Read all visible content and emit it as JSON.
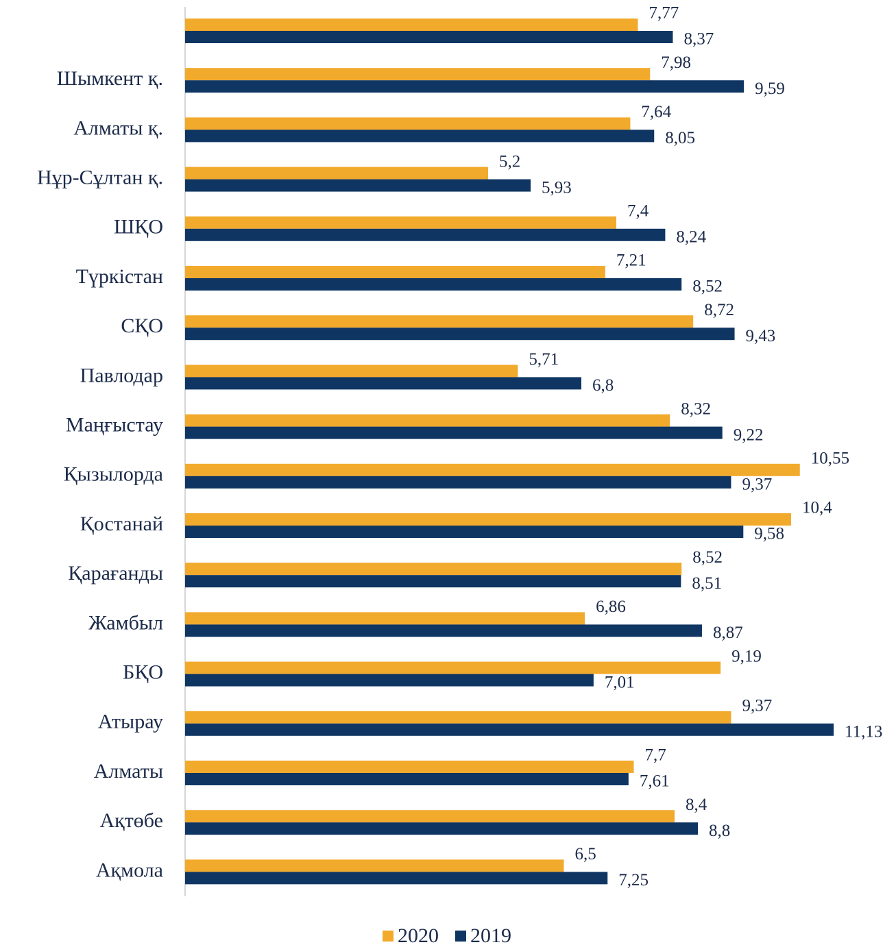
{
  "chart_data": {
    "type": "hbar",
    "categories": [
      null,
      "Шымкент қ.",
      "Алматы қ.",
      "Нұр-Сұлтан қ.",
      "ШҚО",
      "Түркістан",
      "СҚО",
      "Павлодар",
      "Маңғыстау",
      "Қызылорда",
      "Қостанай",
      "Қарағанды",
      "Жамбыл",
      "БҚО",
      "Атырау",
      "Алматы",
      "Ақтөбе",
      "Ақмола"
    ],
    "series": [
      {
        "name": "2020",
        "color": "#f2aa2c",
        "values": [
          7.77,
          7.98,
          7.64,
          5.2,
          7.4,
          7.21,
          8.72,
          5.71,
          8.32,
          10.55,
          10.4,
          8.52,
          6.86,
          9.19,
          9.37,
          7.7,
          8.4,
          6.5
        ],
        "value_labels": [
          "7,77",
          "7,98",
          "7,64",
          "5,2",
          "7,4",
          "7,21",
          "8,72",
          "5,71",
          "8,32",
          "10,55",
          "10,4",
          "8,52",
          "6,86",
          "9,19",
          "9,37",
          "7,7",
          "8,4",
          "6,5"
        ]
      },
      {
        "name": "2019",
        "color": "#0f3562",
        "values": [
          8.37,
          9.59,
          8.05,
          5.93,
          8.24,
          8.52,
          9.43,
          6.8,
          9.22,
          9.37,
          9.58,
          8.51,
          8.87,
          7.01,
          11.13,
          7.61,
          8.8,
          7.25
        ],
        "value_labels": [
          "8,37",
          "9,59",
          "8,05",
          "5,93",
          "8,24",
          "8,52",
          "9,43",
          "6,8",
          "9,22",
          "9,37",
          "9,58",
          "8,51",
          "8,87",
          "7,01",
          "11,13",
          "7,61",
          "8,8",
          "7,25"
        ]
      }
    ],
    "xlim": [
      0,
      12.2
    ],
    "legend": "bottom"
  }
}
